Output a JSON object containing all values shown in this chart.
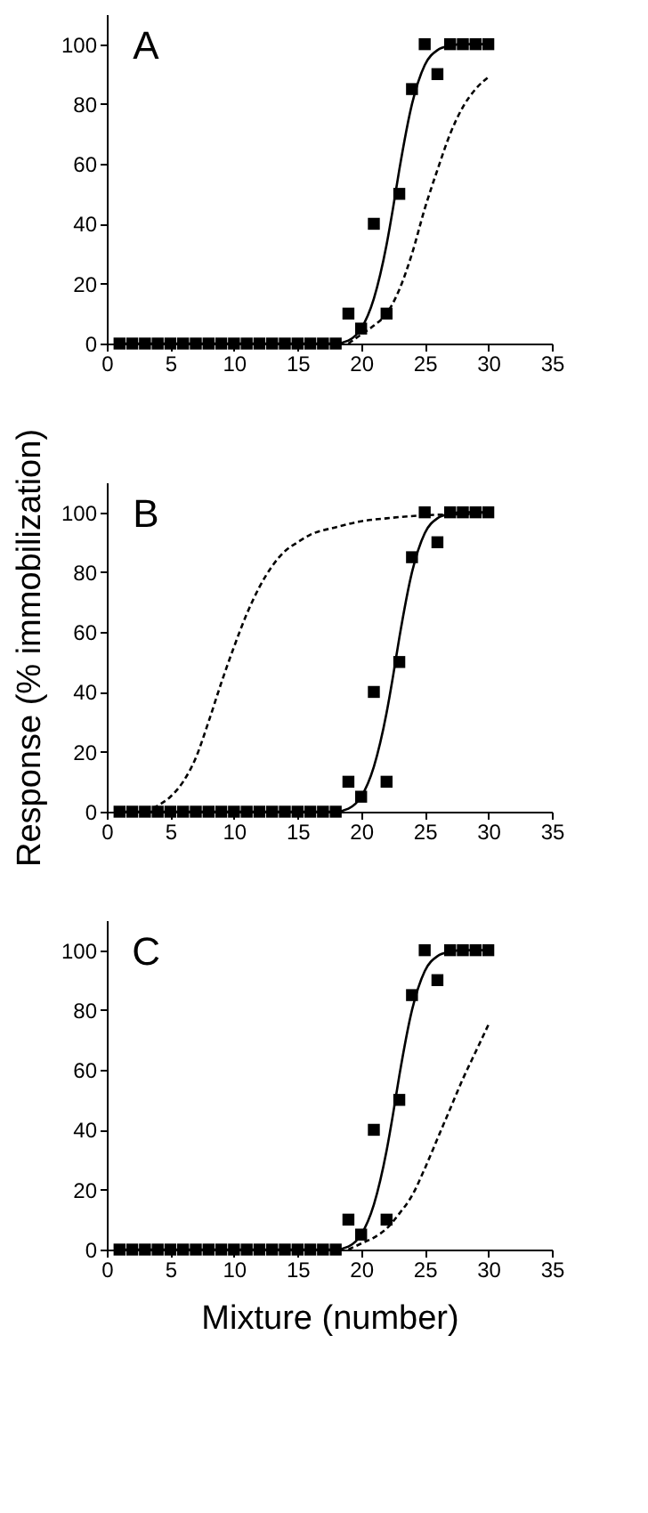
{
  "chart_data": [
    {
      "type": "scatter",
      "annotations": [
        "A"
      ],
      "xlim": [
        0,
        35
      ],
      "ylim": [
        0,
        110
      ],
      "xticks": [
        0,
        5,
        10,
        15,
        20,
        25,
        30,
        35
      ],
      "yticks": [
        0,
        20,
        40,
        60,
        80,
        100
      ],
      "grid": false,
      "series": [
        {
          "type": "scatter",
          "marker": "square",
          "color": "#000000",
          "x": [
            1,
            2,
            3,
            4,
            5,
            6,
            7,
            8,
            9,
            10,
            11,
            12,
            13,
            14,
            15,
            16,
            17,
            18,
            19,
            20,
            21,
            22,
            23,
            24,
            25,
            26,
            27,
            28,
            29,
            30
          ],
          "values": [
            0,
            0,
            0,
            0,
            0,
            0,
            0,
            0,
            0,
            0,
            0,
            0,
            0,
            0,
            0,
            0,
            0,
            0,
            10,
            5,
            40,
            10,
            50,
            85,
            100,
            90,
            100,
            100,
            100,
            100
          ]
        },
        {
          "type": "line",
          "line_style": "solid",
          "color": "#000000",
          "x": [
            1,
            18,
            19,
            20,
            21,
            22,
            22.5,
            23,
            24,
            25,
            26,
            27,
            28,
            30
          ],
          "values": [
            0,
            0,
            1,
            5,
            15,
            33,
            45,
            58,
            80,
            93,
            98,
            99.5,
            100,
            100
          ]
        },
        {
          "type": "line",
          "line_style": "dashed",
          "color": "#000000",
          "x": [
            19,
            20,
            21,
            22,
            23,
            24,
            25,
            26,
            27,
            28,
            29,
            30
          ],
          "values": [
            0,
            3,
            6,
            10,
            18,
            30,
            45,
            58,
            70,
            79,
            85,
            89
          ]
        }
      ]
    },
    {
      "type": "scatter",
      "annotations": [
        "B"
      ],
      "ylabel": "Response (% immobilization)",
      "xlim": [
        0,
        35
      ],
      "ylim": [
        0,
        110
      ],
      "xticks": [
        0,
        5,
        10,
        15,
        20,
        25,
        30,
        35
      ],
      "yticks": [
        0,
        20,
        40,
        60,
        80,
        100
      ],
      "grid": false,
      "series": [
        {
          "type": "scatter",
          "marker": "square",
          "color": "#000000",
          "x": [
            1,
            2,
            3,
            4,
            5,
            6,
            7,
            8,
            9,
            10,
            11,
            12,
            13,
            14,
            15,
            16,
            17,
            18,
            19,
            20,
            21,
            22,
            23,
            24,
            25,
            26,
            27,
            28,
            29,
            30
          ],
          "values": [
            0,
            0,
            0,
            0,
            0,
            0,
            0,
            0,
            0,
            0,
            0,
            0,
            0,
            0,
            0,
            0,
            0,
            0,
            10,
            5,
            40,
            10,
            50,
            85,
            100,
            90,
            100,
            100,
            100,
            100
          ]
        },
        {
          "type": "line",
          "line_style": "solid",
          "color": "#000000",
          "x": [
            1,
            18,
            19,
            20,
            21,
            22,
            22.5,
            23,
            24,
            25,
            26,
            27,
            28,
            30
          ],
          "values": [
            0,
            0,
            1,
            5,
            15,
            33,
            45,
            58,
            80,
            93,
            98,
            99.5,
            100,
            100
          ]
        },
        {
          "type": "line",
          "line_style": "dashed",
          "color": "#000000",
          "x": [
            3,
            4,
            5,
            6,
            7,
            8,
            9,
            10,
            11,
            12,
            13,
            14,
            15,
            16,
            18,
            20,
            22,
            25,
            30
          ],
          "values": [
            0,
            2,
            5,
            10,
            18,
            30,
            43,
            55,
            66,
            75,
            82,
            87,
            90,
            92.5,
            95,
            97,
            98,
            99,
            99.5
          ]
        }
      ]
    },
    {
      "type": "scatter",
      "annotations": [
        "C"
      ],
      "xlabel": "Mixture (number)",
      "xlim": [
        0,
        35
      ],
      "ylim": [
        0,
        110
      ],
      "xticks": [
        0,
        5,
        10,
        15,
        20,
        25,
        30,
        35
      ],
      "yticks": [
        0,
        20,
        40,
        60,
        80,
        100
      ],
      "grid": false,
      "series": [
        {
          "type": "scatter",
          "marker": "square",
          "color": "#000000",
          "x": [
            1,
            2,
            3,
            4,
            5,
            6,
            7,
            8,
            9,
            10,
            11,
            12,
            13,
            14,
            15,
            16,
            17,
            18,
            19,
            20,
            21,
            22,
            23,
            24,
            25,
            26,
            27,
            28,
            29,
            30
          ],
          "values": [
            0,
            0,
            0,
            0,
            0,
            0,
            0,
            0,
            0,
            0,
            0,
            0,
            0,
            0,
            0,
            0,
            0,
            0,
            10,
            5,
            40,
            10,
            50,
            85,
            100,
            90,
            100,
            100,
            100,
            100
          ]
        },
        {
          "type": "line",
          "line_style": "solid",
          "color": "#000000",
          "x": [
            1,
            18,
            19,
            20,
            21,
            22,
            22.5,
            23,
            24,
            25,
            26,
            27,
            28,
            30
          ],
          "values": [
            0,
            0,
            1,
            5,
            15,
            33,
            45,
            58,
            80,
            93,
            98,
            99.5,
            100,
            100
          ]
        },
        {
          "type": "line",
          "line_style": "dashed",
          "color": "#000000",
          "x": [
            19,
            20,
            21,
            22,
            23,
            24,
            25,
            26,
            27,
            28,
            29,
            30
          ],
          "values": [
            0,
            2,
            4,
            7,
            12,
            18,
            27,
            37,
            47,
            57,
            66,
            75
          ]
        }
      ]
    }
  ]
}
